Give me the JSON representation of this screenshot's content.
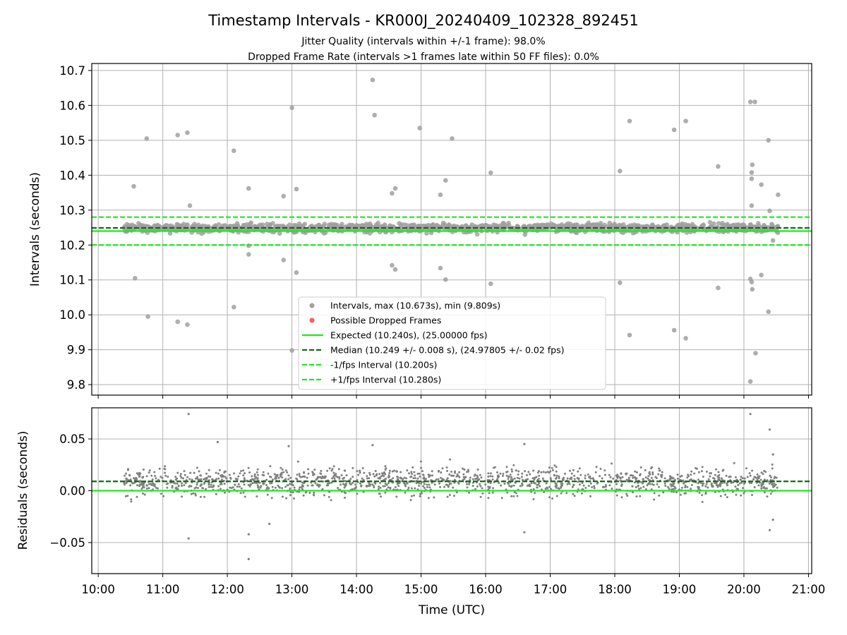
{
  "chart_data": [
    {
      "type": "scatter",
      "title": "Timestamp Intervals - KR000J_20240409_102328_892451",
      "subtitle_1": "Jitter Quality (intervals within +/-1 frame): 98.0%",
      "subtitle_2": "Dropped Frame Rate (intervals >1 frames late within 50 FF files): 0.0%",
      "xlabel": "",
      "ylabel": "Intervals (seconds)",
      "xlim_hours": [
        9.9,
        21.05
      ],
      "ylim": [
        9.77,
        10.72
      ],
      "y_ticks": [
        "9.8",
        "9.9",
        "10.0",
        "10.1",
        "10.2",
        "10.3",
        "10.4",
        "10.5",
        "10.6",
        "10.7"
      ],
      "grid": true,
      "legend_position": "lower center",
      "series": [
        {
          "name": "Intervals, max (10.673s), min (9.809s)",
          "color": "#a0a0a0",
          "kind": "points",
          "x_range_hours": [
            10.4,
            20.53
          ],
          "typical_spread": [
            10.22,
            10.28
          ],
          "outliers": [
            [
              10.55,
              10.368
            ],
            [
              10.57,
              10.105
            ],
            [
              10.75,
              10.505
            ],
            [
              10.77,
              9.995
            ],
            [
              11.23,
              10.515
            ],
            [
              11.23,
              9.98
            ],
            [
              11.38,
              10.522
            ],
            [
              11.38,
              9.972
            ],
            [
              11.42,
              10.313
            ],
            [
              12.1,
              10.47
            ],
            [
              12.1,
              10.022
            ],
            [
              12.33,
              10.362
            ],
            [
              12.33,
              10.173
            ],
            [
              12.33,
              10.198
            ],
            [
              12.87,
              10.34
            ],
            [
              12.87,
              10.157
            ],
            [
              13.0,
              10.593
            ],
            [
              13.0,
              9.898
            ],
            [
              13.07,
              10.36
            ],
            [
              13.07,
              10.121
            ],
            [
              14.25,
              10.673
            ],
            [
              14.28,
              10.572
            ],
            [
              14.55,
              10.348
            ],
            [
              14.6,
              10.362
            ],
            [
              14.55,
              10.142
            ],
            [
              14.6,
              10.13
            ],
            [
              14.98,
              10.535
            ],
            [
              15.3,
              10.344
            ],
            [
              15.3,
              10.134
            ],
            [
              15.38,
              10.385
            ],
            [
              15.38,
              10.101
            ],
            [
              15.48,
              10.505
            ],
            [
              16.08,
              10.407
            ],
            [
              16.08,
              10.089
            ],
            [
              18.08,
              10.412
            ],
            [
              18.08,
              10.092
            ],
            [
              18.23,
              10.555
            ],
            [
              18.23,
              9.942
            ],
            [
              18.92,
              10.53
            ],
            [
              18.92,
              9.956
            ],
            [
              19.1,
              10.555
            ],
            [
              19.1,
              9.933
            ],
            [
              19.6,
              10.425
            ],
            [
              19.6,
              10.077
            ],
            [
              20.1,
              10.61
            ],
            [
              20.17,
              10.61
            ],
            [
              20.13,
              10.43
            ],
            [
              20.12,
              10.408
            ],
            [
              20.12,
              10.39
            ],
            [
              20.12,
              10.313
            ],
            [
              20.1,
              10.103
            ],
            [
              20.12,
              10.094
            ],
            [
              20.13,
              10.073
            ],
            [
              20.27,
              10.373
            ],
            [
              20.27,
              10.114
            ],
            [
              20.38,
              10.5
            ],
            [
              20.38,
              10.009
            ],
            [
              20.4,
              10.298
            ],
            [
              20.1,
              9.809
            ],
            [
              20.18,
              9.89
            ],
            [
              20.53,
              10.344
            ],
            [
              20.45,
              10.213
            ]
          ]
        },
        {
          "name": "Possible Dropped Frames",
          "color": "#ff5a5a",
          "kind": "points",
          "count": 0
        },
        {
          "name": "Expected (10.240s), (25.00000 fps)",
          "color": "#1ee81e",
          "kind": "hline",
          "y": 10.24,
          "style": "solid"
        },
        {
          "name": "Median (10.249 +/- 0.008 s), (24.97805 +/- 0.02 fps)",
          "color": "#0b6e0b",
          "kind": "hline",
          "y": 10.249,
          "style": "dashed"
        },
        {
          "name": "-1/fps Interval (10.200s)",
          "color": "#1ee81e",
          "kind": "hline",
          "y": 10.2,
          "style": "dashed"
        },
        {
          "name": "+1/fps Interval (10.280s)",
          "color": "#1ee81e",
          "kind": "hline",
          "y": 10.28,
          "style": "dashed"
        }
      ]
    },
    {
      "type": "scatter",
      "title": "",
      "xlabel": "Time (UTC)",
      "ylabel": "Residuals (seconds)",
      "xlim_hours": [
        9.9,
        21.05
      ],
      "ylim": [
        -0.08,
        0.08
      ],
      "y_ticks": [
        "−0.05",
        "0.00",
        "0.05"
      ],
      "x_ticks": [
        "10:00",
        "11:00",
        "12:00",
        "13:00",
        "14:00",
        "15:00",
        "16:00",
        "17:00",
        "18:00",
        "19:00",
        "20:00",
        "21:00"
      ],
      "grid": true,
      "series": [
        {
          "name": "",
          "color": "#808080",
          "kind": "points",
          "x_range_hours": [
            10.4,
            20.53
          ],
          "typical_spread": [
            -0.02,
            0.04
          ],
          "outliers": [
            [
              11.4,
              0.074
            ],
            [
              11.4,
              -0.046
            ],
            [
              11.85,
              0.047
            ],
            [
              12.33,
              -0.042
            ],
            [
              12.33,
              -0.066
            ],
            [
              12.65,
              -0.032
            ],
            [
              12.95,
              0.043
            ],
            [
              14.25,
              0.044
            ],
            [
              16.6,
              0.045
            ],
            [
              16.6,
              -0.04
            ],
            [
              20.1,
              0.074
            ],
            [
              20.4,
              0.059
            ],
            [
              20.4,
              -0.038
            ],
            [
              20.45,
              -0.028
            ],
            [
              20.45,
              0.035
            ]
          ]
        },
        {
          "name": "",
          "color": "#0b6e0b",
          "kind": "hline",
          "y": 0.009,
          "style": "dashed"
        },
        {
          "name": "",
          "color": "#1ee81e",
          "kind": "hline",
          "y": 0.0,
          "style": "solid"
        }
      ]
    }
  ]
}
